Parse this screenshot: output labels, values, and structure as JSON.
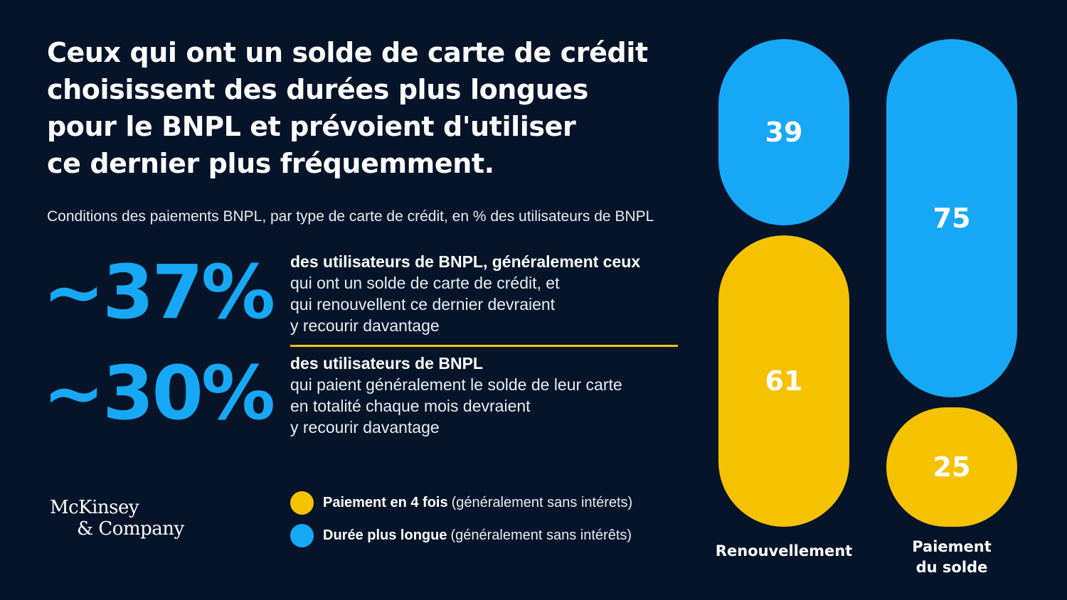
{
  "title": {
    "lines": [
      "Ceux qui ont un solde de carte de crédit",
      "choisissent des durées plus longues",
      "pour le BNPL et prévoient d'utiliser",
      "ce dernier plus fréquemment."
    ]
  },
  "subtitle": "Conditions des paiements BNPL, par type de carte de crédit, en % des utilisateurs de BNPL",
  "stats": [
    {
      "value": "~37%",
      "lines": [
        "des utilisateurs de BNPL, généralement ceux",
        "qui ont un solde de carte de crédit, et",
        "qui renouvellent ce dernier devraient",
        "y recourir davantage"
      ]
    },
    {
      "value": "~30%",
      "lines": [
        "des utilisateurs de BNPL",
        "qui paient généralement le solde de leur carte",
        "en totalité chaque mois devraient",
        "y recourir davantage"
      ]
    }
  ],
  "legend": [
    {
      "strong": "Paiement en 4 fois",
      "rest": "(généralement sans intérets)",
      "color": "#f6c200"
    },
    {
      "strong": "Durée plus longue",
      "rest": "(généralement sans intérêts)",
      "color": "#17a8f5"
    }
  ],
  "logo": {
    "line1": "McKinsey",
    "line2": "& Company"
  },
  "colors": {
    "background": "#051429",
    "blue": "#17a8f5",
    "yellow": "#f6c200"
  },
  "chart_data": {
    "type": "bar",
    "stacked": true,
    "categories": [
      [
        "Renouvellement"
      ],
      [
        "Paiement",
        "du solde"
      ]
    ],
    "series": [
      {
        "name": "Durée plus longue",
        "color": "#17a8f5",
        "values": [
          39,
          75
        ]
      },
      {
        "name": "Paiement en 4 fois",
        "color": "#f6c200",
        "values": [
          61,
          25
        ]
      }
    ],
    "ylim": [
      0,
      100
    ]
  }
}
